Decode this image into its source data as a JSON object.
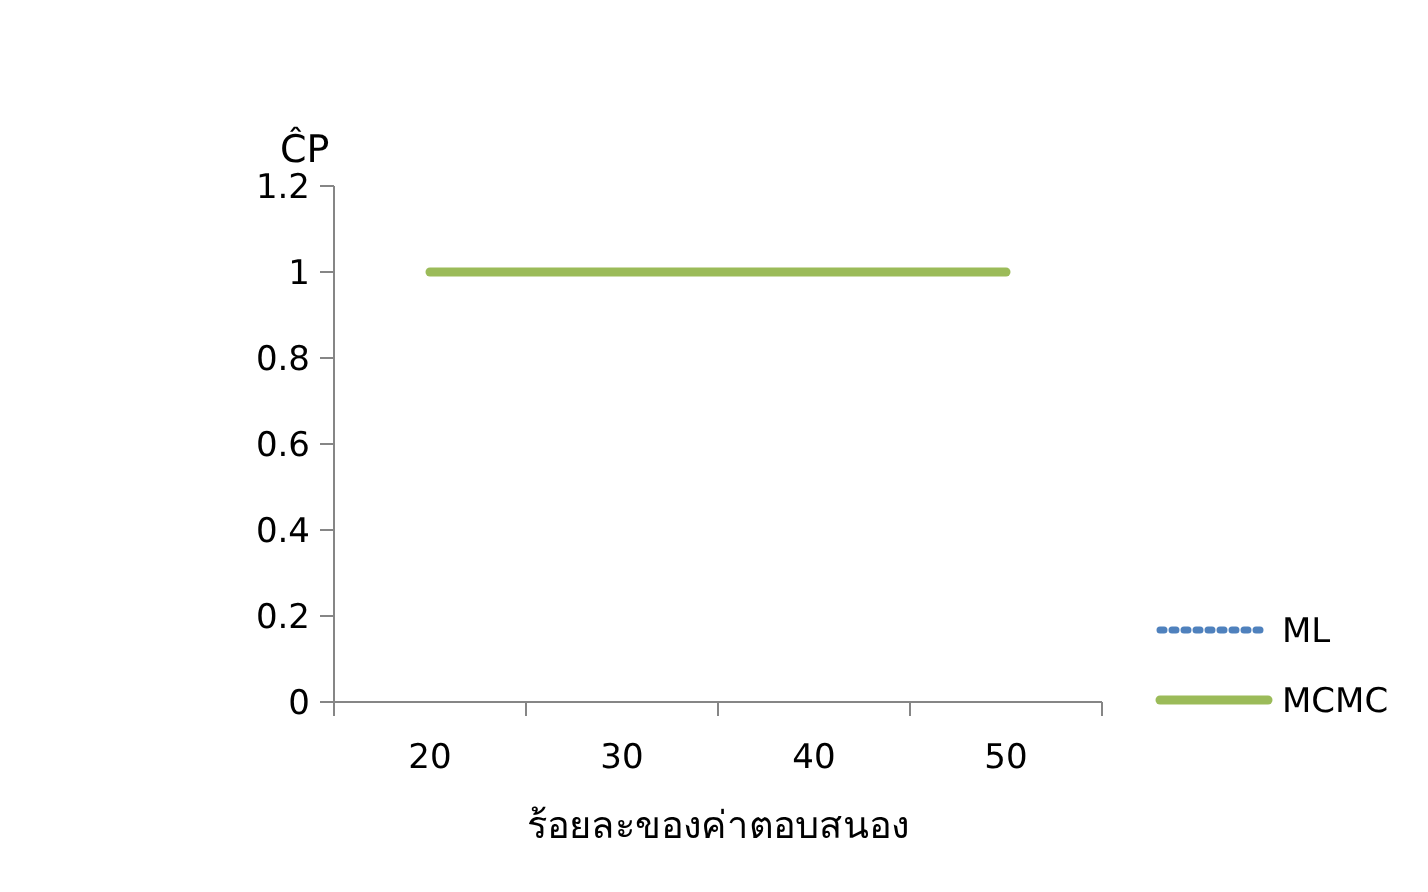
{
  "chart_data": {
    "type": "line",
    "ylabel": "ĈP",
    "xlabel": "ร้อยละของค่าตอบสนอง",
    "categories": [
      "20",
      "30",
      "40",
      "50"
    ],
    "ylim": [
      0,
      1.2
    ],
    "yticks": [
      0,
      0.2,
      0.4,
      0.6,
      0.8,
      1,
      1.2
    ],
    "grid": false,
    "legend": "right",
    "series": [
      {
        "name": "ML",
        "color": "#4f81bd",
        "line_style": "dotted",
        "values": [
          null,
          null,
          null,
          null
        ]
      },
      {
        "name": "MCMC",
        "color": "#9bbb59",
        "line_style": "solid",
        "values": [
          1,
          1,
          1,
          1
        ]
      }
    ]
  }
}
